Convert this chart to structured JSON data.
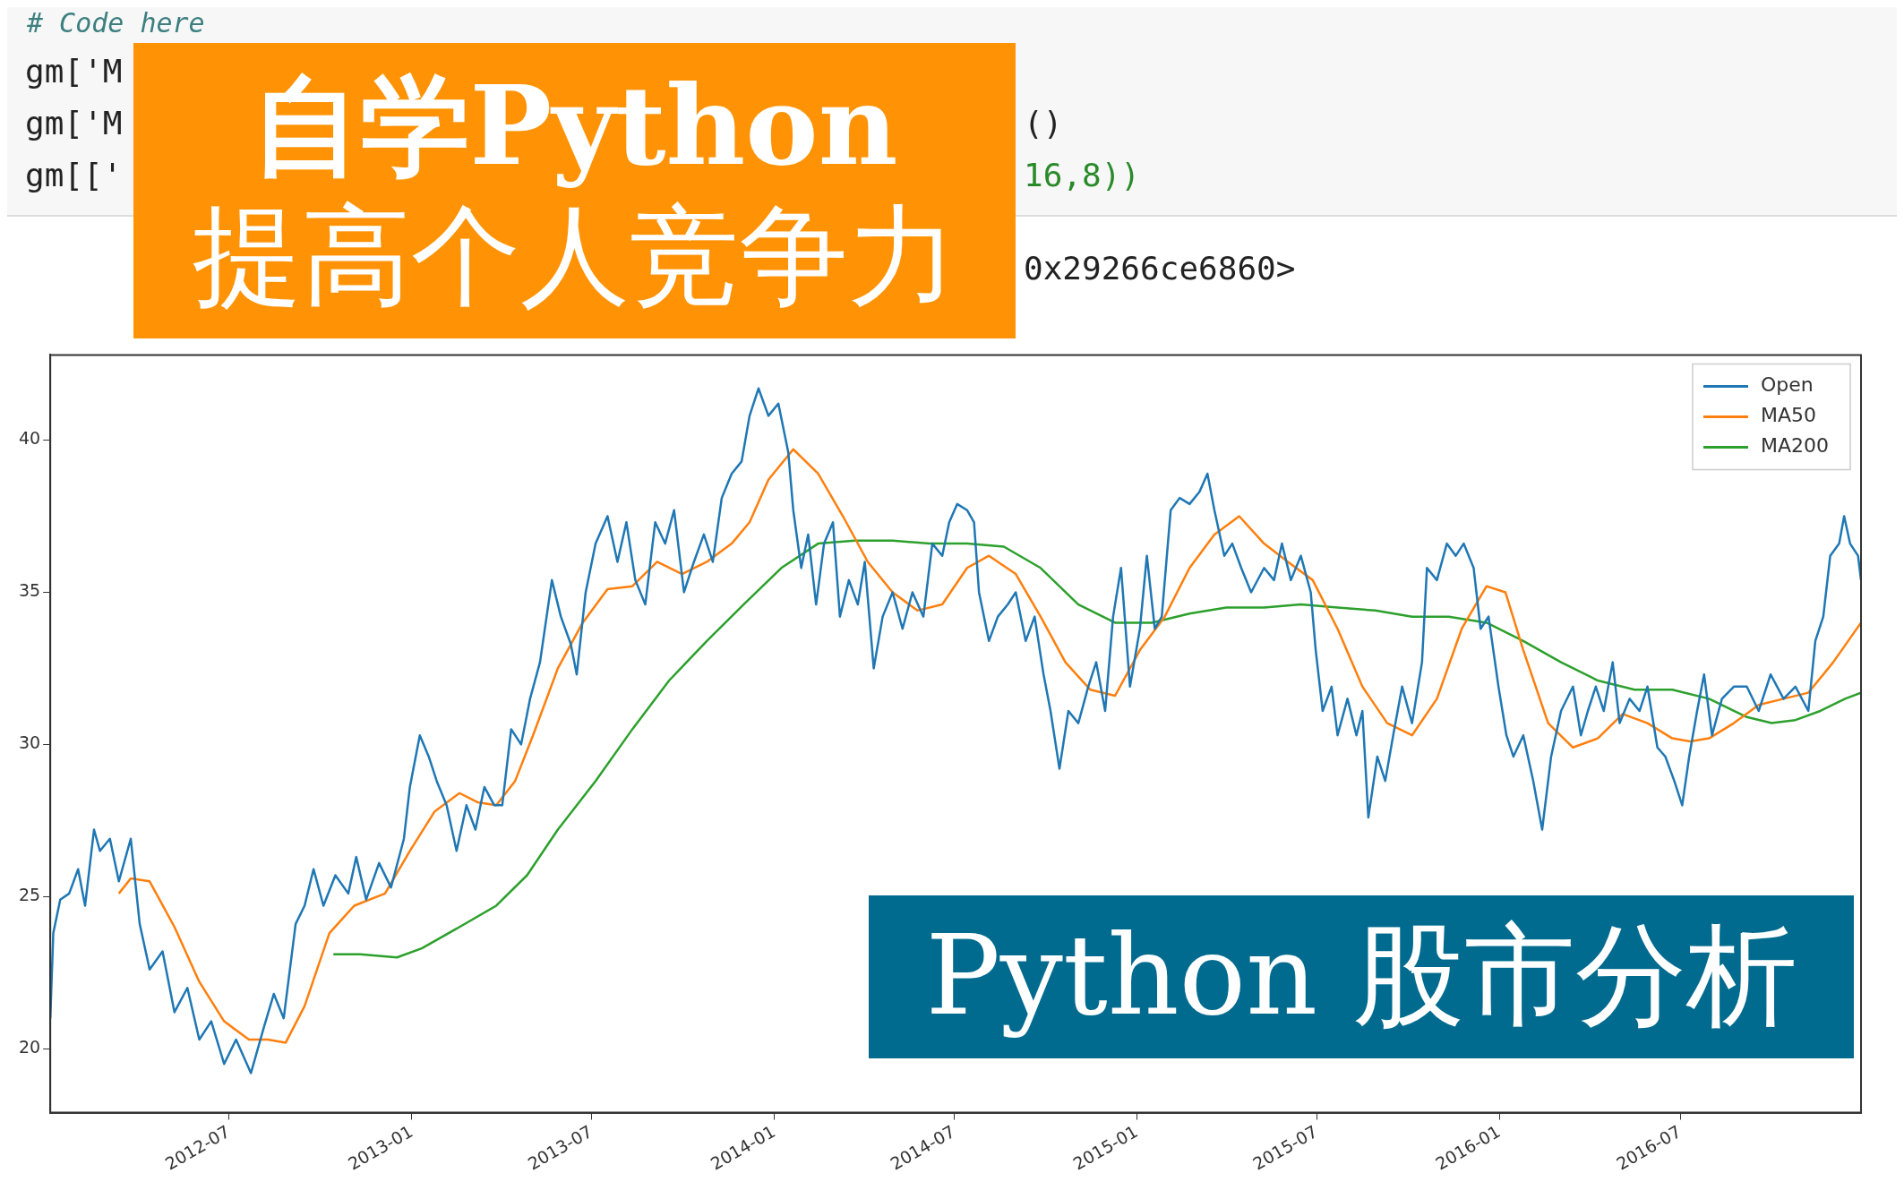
{
  "chart_data": {
    "type": "line",
    "title": "自学Python",
    "subtitle": "提高个人竞争力",
    "annotations": [
      "Python 股市分析",
      "# Code here",
      "gm['M",
      "gm['M",
      "gm[['",
      "()",
      "16,8))",
      "0x29266ce6860>"
    ],
    "xlim": [
      "2012-01-03",
      "2016-12-30"
    ],
    "xticks": [
      "2012-07",
      "2013-01",
      "2013-07",
      "2014-01",
      "2014-07",
      "2015-01",
      "2015-07",
      "2016-01",
      "2016-07"
    ],
    "ylim": [
      17.9,
      42.8
    ],
    "yticks": [
      20,
      25,
      30,
      35,
      40
    ],
    "grid": false,
    "legend": "top right",
    "marker": "none",
    "line_style": "solid",
    "series": [
      {
        "name": "Open",
        "color": "#1f77b4",
        "x": [
          "2012-01-03",
          "2012-01-06",
          "2012-01-13",
          "2012-01-22",
          "2012-01-31",
          "2012-02-07",
          "2012-02-16",
          "2012-02-22",
          "2012-03-03",
          "2012-03-12",
          "2012-03-24",
          "2012-04-02",
          "2012-04-12",
          "2012-04-25",
          "2012-05-07",
          "2012-05-20",
          "2012-06-01",
          "2012-06-13",
          "2012-06-26",
          "2012-07-08",
          "2012-07-23",
          "2012-08-05",
          "2012-08-15",
          "2012-08-25",
          "2012-09-06",
          "2012-09-15",
          "2012-09-24",
          "2012-10-04",
          "2012-10-16",
          "2012-10-29",
          "2012-11-06",
          "2012-11-16",
          "2012-11-29",
          "2012-12-11",
          "2012-12-24",
          "2012-12-30",
          "2013-01-09",
          "2013-01-18",
          "2013-01-26",
          "2013-02-05",
          "2013-02-15",
          "2013-02-25",
          "2013-03-06",
          "2013-03-15",
          "2013-03-25",
          "2013-04-02",
          "2013-04-11",
          "2013-04-21",
          "2013-04-30",
          "2013-05-10",
          "2013-05-22",
          "2013-05-31",
          "2013-06-10",
          "2013-06-16",
          "2013-06-25",
          "2013-07-05",
          "2013-07-17",
          "2013-07-27",
          "2013-08-05",
          "2013-08-14",
          "2013-08-24",
          "2013-09-03",
          "2013-09-13",
          "2013-09-22",
          "2013-10-02",
          "2013-10-12",
          "2013-10-22",
          "2013-10-31",
          "2013-11-09",
          "2013-11-19",
          "2013-11-29",
          "2013-12-07",
          "2013-12-16",
          "2013-12-26",
          "2014-01-05",
          "2014-01-15",
          "2014-01-20",
          "2014-01-28",
          "2014-02-04",
          "2014-02-12",
          "2014-02-20",
          "2014-03-01",
          "2014-03-08",
          "2014-03-17",
          "2014-03-26",
          "2014-04-02",
          "2014-04-11",
          "2014-04-20",
          "2014-04-30",
          "2014-05-10",
          "2014-05-20",
          "2014-05-31",
          "2014-06-09",
          "2014-06-19",
          "2014-06-26",
          "2014-07-04",
          "2014-07-14",
          "2014-07-21",
          "2014-07-26",
          "2014-08-05",
          "2014-08-14",
          "2014-08-24",
          "2014-09-01",
          "2014-09-11",
          "2014-09-20",
          "2014-09-29",
          "2014-10-06",
          "2014-10-15",
          "2014-10-24",
          "2014-11-03",
          "2014-11-13",
          "2014-11-21",
          "2014-11-30",
          "2014-12-08",
          "2014-12-16",
          "2014-12-25",
          "2015-01-04",
          "2015-01-11",
          "2015-01-19",
          "2015-01-26",
          "2015-02-04",
          "2015-02-13",
          "2015-02-23",
          "2015-03-05",
          "2015-03-13",
          "2015-03-20",
          "2015-03-30",
          "2015-04-07",
          "2015-04-16",
          "2015-04-26",
          "2015-05-09",
          "2015-05-19",
          "2015-05-27",
          "2015-06-05",
          "2015-06-15",
          "2015-06-25",
          "2015-06-30",
          "2015-07-07",
          "2015-07-16",
          "2015-07-22",
          "2015-08-01",
          "2015-08-10",
          "2015-08-16",
          "2015-08-22",
          "2015-08-31",
          "2015-09-08",
          "2015-09-16",
          "2015-09-25",
          "2015-10-05",
          "2015-10-15",
          "2015-10-20",
          "2015-10-30",
          "2015-11-09",
          "2015-11-18",
          "2015-11-26",
          "2015-12-06",
          "2015-12-13",
          "2015-12-21",
          "2015-12-31",
          "2016-01-08",
          "2016-01-15",
          "2016-01-25",
          "2016-02-04",
          "2016-02-13",
          "2016-02-22",
          "2016-03-03",
          "2016-03-15",
          "2016-03-23",
          "2016-03-30",
          "2016-04-07",
          "2016-04-15",
          "2016-04-24",
          "2016-05-01",
          "2016-05-11",
          "2016-05-21",
          "2016-05-29",
          "2016-06-08",
          "2016-06-16",
          "2016-06-25",
          "2016-07-03",
          "2016-07-10",
          "2016-07-18",
          "2016-07-25",
          "2016-08-02",
          "2016-08-12",
          "2016-08-24",
          "2016-09-06",
          "2016-09-18",
          "2016-09-30",
          "2016-10-13",
          "2016-10-25",
          "2016-11-07",
          "2016-11-14",
          "2016-11-22",
          "2016-11-29",
          "2016-12-08",
          "2016-12-13",
          "2016-12-19",
          "2016-12-27",
          "2016-12-30"
        ],
        "values": [
          21.0,
          23.8,
          24.9,
          25.1,
          25.9,
          24.7,
          27.2,
          26.5,
          26.9,
          25.5,
          26.9,
          24.1,
          22.6,
          23.2,
          21.2,
          22.0,
          20.3,
          20.9,
          19.5,
          20.3,
          19.2,
          20.7,
          21.8,
          21.0,
          24.1,
          24.7,
          25.9,
          24.7,
          25.7,
          25.1,
          26.3,
          24.9,
          26.1,
          25.3,
          26.9,
          28.6,
          30.3,
          29.6,
          28.8,
          28.0,
          26.5,
          28.0,
          27.2,
          28.6,
          28.0,
          28.0,
          30.5,
          30.0,
          31.5,
          32.7,
          35.4,
          34.2,
          33.3,
          32.3,
          35.0,
          36.6,
          37.5,
          36.0,
          37.3,
          35.4,
          34.6,
          37.3,
          36.6,
          37.7,
          35.0,
          36.0,
          36.9,
          36.0,
          38.1,
          38.9,
          39.3,
          40.8,
          41.7,
          40.8,
          41.2,
          39.6,
          37.7,
          35.8,
          36.9,
          34.6,
          36.6,
          37.3,
          34.2,
          35.4,
          34.6,
          36.0,
          32.5,
          34.2,
          35.0,
          33.8,
          35.0,
          34.2,
          36.6,
          36.2,
          37.3,
          37.9,
          37.7,
          37.3,
          35.0,
          33.4,
          34.2,
          34.6,
          35.0,
          33.4,
          34.2,
          32.3,
          31.1,
          29.2,
          31.1,
          30.7,
          31.9,
          32.7,
          31.1,
          34.2,
          35.8,
          31.9,
          33.8,
          36.2,
          33.8,
          34.2,
          37.7,
          38.1,
          37.9,
          38.3,
          38.9,
          37.7,
          36.2,
          36.6,
          35.8,
          35.0,
          35.8,
          35.4,
          36.6,
          35.4,
          36.2,
          35.0,
          33.1,
          31.1,
          31.9,
          30.3,
          31.5,
          30.3,
          31.1,
          27.6,
          29.6,
          28.8,
          30.3,
          31.9,
          30.7,
          32.7,
          35.8,
          35.4,
          36.6,
          36.2,
          36.6,
          35.8,
          33.8,
          34.2,
          31.9,
          30.3,
          29.6,
          30.3,
          28.8,
          27.2,
          29.6,
          31.1,
          31.9,
          30.3,
          31.1,
          31.9,
          31.1,
          32.7,
          30.7,
          31.5,
          31.1,
          31.9,
          29.9,
          29.6,
          28.8,
          28.0,
          29.6,
          31.1,
          32.3,
          30.3,
          31.5,
          31.9,
          31.9,
          31.1,
          32.3,
          31.5,
          31.9,
          31.1,
          33.4,
          34.2,
          36.2,
          36.6,
          37.5,
          36.6,
          36.2,
          35.4
        ]
      },
      {
        "name": "MA50",
        "color": "#ff7f0e",
        "x": [
          "2012-03-12",
          "2012-03-24",
          "2012-04-12",
          "2012-05-07",
          "2012-06-01",
          "2012-06-26",
          "2012-07-21",
          "2012-08-09",
          "2012-08-27",
          "2012-09-15",
          "2012-10-10",
          "2012-11-04",
          "2012-12-05",
          "2012-12-30",
          "2013-01-24",
          "2013-02-18",
          "2013-03-08",
          "2013-03-27",
          "2013-04-15",
          "2013-05-03",
          "2013-05-28",
          "2013-06-22",
          "2013-07-17",
          "2013-08-11",
          "2013-09-05",
          "2013-09-30",
          "2013-10-25",
          "2013-11-19",
          "2013-12-07",
          "2013-12-26",
          "2014-01-20",
          "2014-02-14",
          "2014-03-11",
          "2014-04-05",
          "2014-04-30",
          "2014-05-25",
          "2014-06-19",
          "2014-07-14",
          "2014-08-05",
          "2014-09-01",
          "2014-09-26",
          "2014-10-21",
          "2014-11-15",
          "2014-12-10",
          "2015-01-04",
          "2015-01-29",
          "2015-02-23",
          "2015-03-20",
          "2015-04-14",
          "2015-05-09",
          "2015-06-02",
          "2015-06-27",
          "2015-07-22",
          "2015-08-16",
          "2015-09-10",
          "2015-10-05",
          "2015-10-30",
          "2015-11-24",
          "2015-12-19",
          "2016-01-07",
          "2016-01-25",
          "2016-02-19",
          "2016-03-15",
          "2016-04-09",
          "2016-05-04",
          "2016-05-29",
          "2016-06-23",
          "2016-07-11",
          "2016-07-30",
          "2016-08-24",
          "2016-09-18",
          "2016-10-13",
          "2016-11-07",
          "2016-12-02",
          "2016-12-30"
        ],
        "values": [
          25.1,
          25.6,
          25.5,
          24.0,
          22.2,
          20.9,
          20.3,
          20.3,
          20.2,
          21.4,
          23.8,
          24.7,
          25.1,
          26.5,
          27.8,
          28.4,
          28.1,
          28.0,
          28.8,
          30.3,
          32.5,
          34.0,
          35.1,
          35.2,
          36.0,
          35.6,
          36.0,
          36.6,
          37.3,
          38.7,
          39.7,
          38.9,
          37.5,
          36.0,
          35.0,
          34.4,
          34.6,
          35.8,
          36.2,
          35.6,
          34.2,
          32.7,
          31.8,
          31.6,
          33.1,
          34.2,
          35.8,
          36.9,
          37.5,
          36.6,
          36.0,
          35.4,
          33.8,
          31.9,
          30.7,
          30.3,
          31.5,
          33.8,
          35.2,
          35.0,
          33.1,
          30.7,
          29.9,
          30.2,
          31.0,
          30.7,
          30.2,
          30.1,
          30.2,
          30.7,
          31.3,
          31.5,
          31.7,
          32.7,
          34.0
        ]
      },
      {
        "name": "MA200",
        "color": "#2ca02c",
        "x": [
          "2012-10-14",
          "2012-11-10",
          "2012-12-17",
          "2013-01-11",
          "2013-02-18",
          "2013-03-27",
          "2013-04-27",
          "2013-05-28",
          "2013-07-05",
          "2013-08-11",
          "2013-09-17",
          "2013-10-25",
          "2013-12-01",
          "2014-01-08",
          "2014-02-14",
          "2014-03-23",
          "2014-04-30",
          "2014-06-06",
          "2014-07-14",
          "2014-08-20",
          "2014-09-26",
          "2014-11-03",
          "2014-12-10",
          "2015-01-16",
          "2015-02-23",
          "2015-04-01",
          "2015-05-09",
          "2015-06-15",
          "2015-07-22",
          "2015-08-29",
          "2015-10-05",
          "2015-11-11",
          "2015-12-19",
          "2016-01-25",
          "2016-03-03",
          "2016-04-09",
          "2016-05-16",
          "2016-06-23",
          "2016-07-30",
          "2016-09-06",
          "2016-10-01",
          "2016-10-25",
          "2016-11-19",
          "2016-12-14",
          "2016-12-30"
        ],
        "values": [
          23.1,
          23.1,
          23.0,
          23.3,
          24.0,
          24.7,
          25.7,
          27.2,
          28.8,
          30.5,
          32.1,
          33.4,
          34.6,
          35.8,
          36.6,
          36.7,
          36.7,
          36.6,
          36.6,
          36.5,
          35.8,
          34.6,
          34.0,
          34.0,
          34.3,
          34.5,
          34.5,
          34.6,
          34.5,
          34.4,
          34.2,
          34.2,
          34.0,
          33.4,
          32.7,
          32.1,
          31.8,
          31.8,
          31.5,
          30.9,
          30.7,
          30.8,
          31.1,
          31.5,
          31.7
        ]
      }
    ]
  }
}
